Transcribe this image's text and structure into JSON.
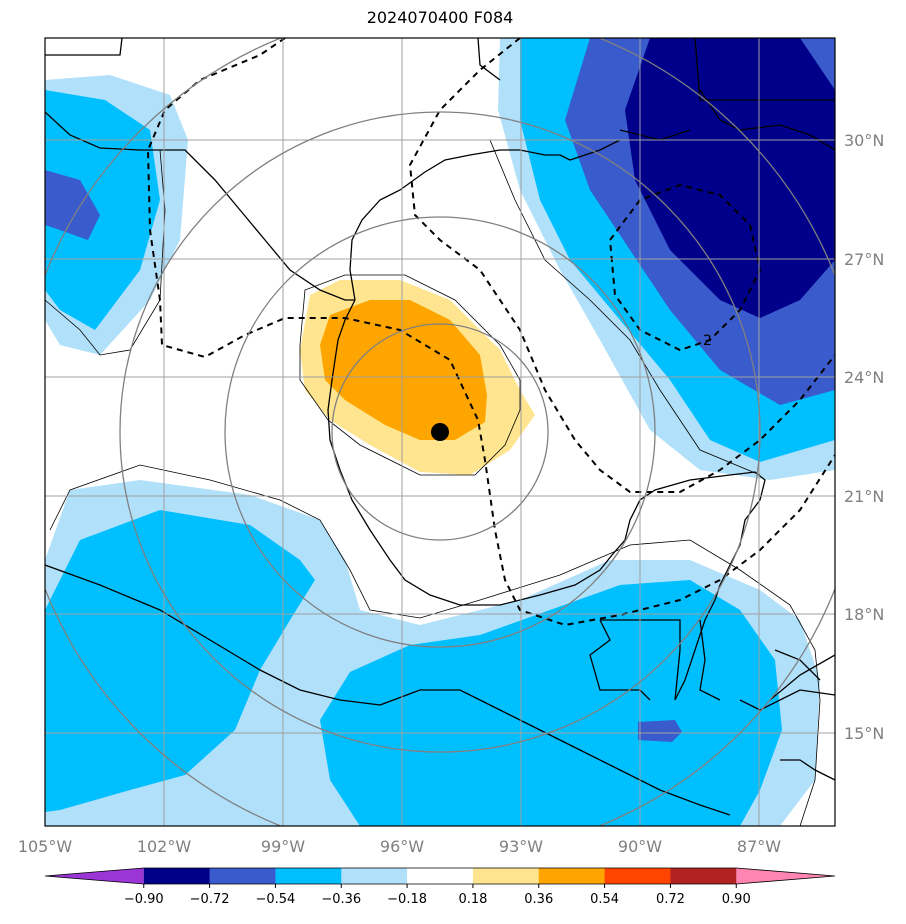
{
  "title": "2024070400 F084",
  "lon_labels": [
    "105°W",
    "102°W",
    "99°W",
    "96°W",
    "93°W",
    "90°W",
    "87°W"
  ],
  "lat_labels": [
    "30°N",
    "27°N",
    "24°N",
    "21°N",
    "18°N",
    "15°N"
  ],
  "colorbar": {
    "ticks": [
      "−0.90",
      "−0.72",
      "−0.54",
      "−0.36",
      "−0.18",
      "0.18",
      "0.36",
      "0.54",
      "0.72",
      "0.90"
    ],
    "colors": [
      "#9a35d6",
      "#00008b",
      "#3a5bcc",
      "#00bfff",
      "#b0e0fa",
      "#ffffff",
      "#ffe58f",
      "#ffa500",
      "#ff4500",
      "#b22222",
      "#ff85b2"
    ]
  },
  "contour_label": "2",
  "colors": {
    "dark_blue": "#00008b",
    "royal_blue": "#3a5bcc",
    "deep_sky": "#00bfff",
    "light_blue": "#b0e0fa",
    "light_yellow": "#ffe58f",
    "orange": "#ffa500"
  }
}
